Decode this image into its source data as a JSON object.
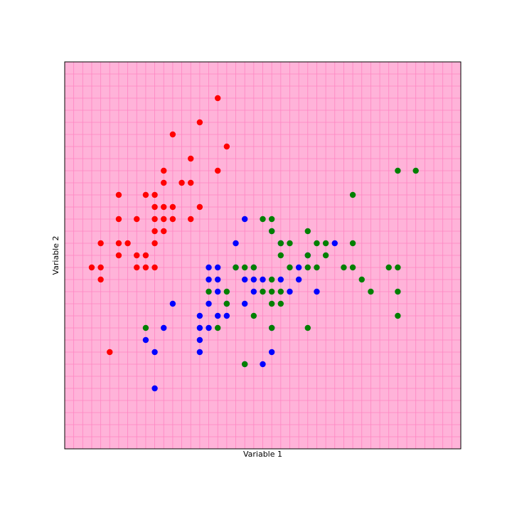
{
  "chart_data": {
    "type": "scatter",
    "xlabel": "Variable 1",
    "ylabel": "Variable 2",
    "xlim": [
      4.0,
      8.4
    ],
    "ylim": [
      1.5,
      4.7
    ],
    "grid": true,
    "background_color": "#ffb3d9",
    "grid_color": "#ff85c2",
    "series": [
      {
        "color": "#ff0000",
        "points": [
          [
            4.3,
            3.0
          ],
          [
            4.4,
            2.9
          ],
          [
            4.4,
            3.0
          ],
          [
            4.4,
            3.2
          ],
          [
            4.5,
            2.3
          ],
          [
            4.6,
            3.1
          ],
          [
            4.6,
            3.2
          ],
          [
            4.6,
            3.4
          ],
          [
            4.6,
            3.6
          ],
          [
            4.7,
            3.2
          ],
          [
            4.8,
            3.0
          ],
          [
            4.8,
            3.1
          ],
          [
            4.8,
            3.4
          ],
          [
            4.9,
            3.0
          ],
          [
            4.9,
            3.1
          ],
          [
            4.9,
            3.6
          ],
          [
            5.0,
            3.0
          ],
          [
            5.0,
            3.2
          ],
          [
            5.0,
            3.3
          ],
          [
            5.0,
            3.4
          ],
          [
            5.0,
            3.5
          ],
          [
            5.0,
            3.6
          ],
          [
            5.1,
            3.3
          ],
          [
            5.1,
            3.4
          ],
          [
            5.1,
            3.5
          ],
          [
            5.1,
            3.7
          ],
          [
            5.1,
            3.8
          ],
          [
            5.2,
            3.4
          ],
          [
            5.2,
            3.5
          ],
          [
            5.2,
            4.1
          ],
          [
            5.3,
            3.7
          ],
          [
            5.4,
            3.4
          ],
          [
            5.4,
            3.7
          ],
          [
            5.4,
            3.9
          ],
          [
            5.5,
            3.5
          ],
          [
            5.5,
            4.2
          ],
          [
            5.7,
            3.8
          ],
          [
            5.7,
            4.4
          ],
          [
            5.8,
            4.0
          ]
        ]
      },
      {
        "color": "#0000ff",
        "points": [
          [
            4.9,
            2.4
          ],
          [
            5.0,
            2.0
          ],
          [
            5.0,
            2.3
          ],
          [
            5.1,
            2.5
          ],
          [
            5.2,
            2.7
          ],
          [
            5.5,
            2.3
          ],
          [
            5.5,
            2.4
          ],
          [
            5.5,
            2.5
          ],
          [
            5.5,
            2.6
          ],
          [
            5.6,
            2.5
          ],
          [
            5.6,
            2.7
          ],
          [
            5.6,
            2.9
          ],
          [
            5.6,
            3.0
          ],
          [
            5.7,
            2.6
          ],
          [
            5.7,
            2.8
          ],
          [
            5.7,
            2.9
          ],
          [
            5.7,
            3.0
          ],
          [
            5.8,
            2.6
          ],
          [
            5.8,
            2.7
          ],
          [
            5.9,
            3.0
          ],
          [
            5.9,
            3.2
          ],
          [
            6.0,
            2.2
          ],
          [
            6.0,
            2.7
          ],
          [
            6.0,
            2.9
          ],
          [
            6.0,
            3.4
          ],
          [
            6.1,
            2.8
          ],
          [
            6.1,
            2.9
          ],
          [
            6.1,
            3.0
          ],
          [
            6.2,
            2.2
          ],
          [
            6.2,
            2.9
          ],
          [
            6.3,
            2.3
          ],
          [
            6.3,
            2.5
          ],
          [
            6.3,
            3.3
          ],
          [
            6.4,
            2.9
          ],
          [
            6.4,
            3.2
          ],
          [
            6.5,
            2.8
          ],
          [
            6.6,
            2.9
          ],
          [
            6.6,
            3.0
          ],
          [
            6.7,
            3.1
          ],
          [
            6.8,
            2.8
          ],
          [
            7.0,
            3.2
          ]
        ]
      },
      {
        "color": "#008000",
        "points": [
          [
            4.9,
            2.5
          ],
          [
            5.6,
            2.8
          ],
          [
            5.7,
            2.5
          ],
          [
            5.8,
            2.7
          ],
          [
            5.8,
            2.8
          ],
          [
            5.9,
            3.0
          ],
          [
            6.0,
            2.2
          ],
          [
            6.0,
            3.0
          ],
          [
            6.1,
            2.6
          ],
          [
            6.1,
            3.0
          ],
          [
            6.2,
            2.8
          ],
          [
            6.2,
            3.4
          ],
          [
            6.3,
            2.5
          ],
          [
            6.3,
            2.7
          ],
          [
            6.3,
            2.8
          ],
          [
            6.3,
            2.9
          ],
          [
            6.3,
            3.3
          ],
          [
            6.3,
            3.4
          ],
          [
            6.4,
            2.7
          ],
          [
            6.4,
            2.8
          ],
          [
            6.4,
            3.1
          ],
          [
            6.4,
            3.2
          ],
          [
            6.5,
            3.0
          ],
          [
            6.5,
            3.2
          ],
          [
            6.7,
            2.5
          ],
          [
            6.7,
            3.0
          ],
          [
            6.7,
            3.1
          ],
          [
            6.7,
            3.3
          ],
          [
            6.8,
            3.0
          ],
          [
            6.8,
            3.2
          ],
          [
            6.9,
            3.1
          ],
          [
            6.9,
            3.2
          ],
          [
            7.1,
            3.0
          ],
          [
            7.2,
            3.0
          ],
          [
            7.2,
            3.2
          ],
          [
            7.2,
            3.6
          ],
          [
            7.3,
            2.9
          ],
          [
            7.4,
            2.8
          ],
          [
            7.6,
            3.0
          ],
          [
            7.7,
            2.6
          ],
          [
            7.7,
            2.8
          ],
          [
            7.7,
            3.0
          ],
          [
            7.7,
            3.8
          ],
          [
            7.9,
            3.8
          ]
        ]
      }
    ]
  }
}
